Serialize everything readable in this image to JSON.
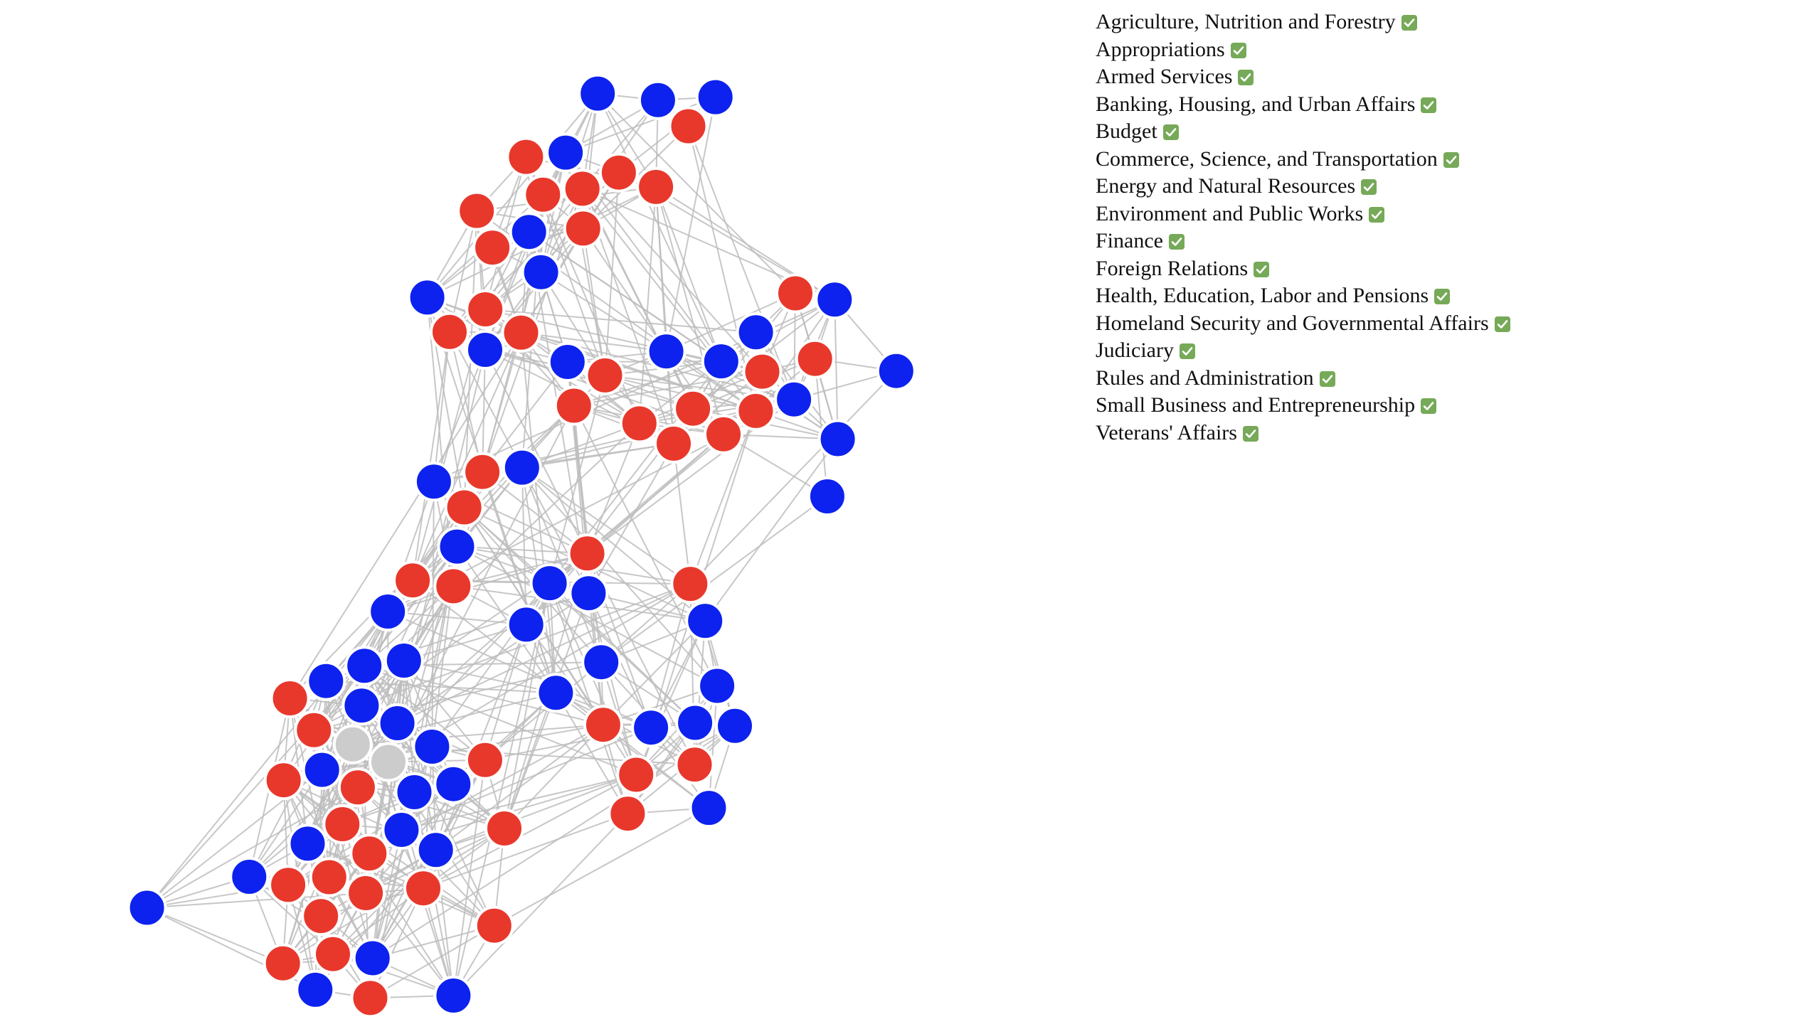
{
  "legend": {
    "check_icon": "checkbox-checked-icon",
    "check_color": "#76a958",
    "committees": [
      {
        "label": "Agriculture, Nutrition and Forestry",
        "checked": true
      },
      {
        "label": "Appropriations",
        "checked": true
      },
      {
        "label": "Armed Services",
        "checked": true
      },
      {
        "label": "Banking, Housing, and Urban Affairs",
        "checked": true
      },
      {
        "label": "Budget",
        "checked": true
      },
      {
        "label": "Commerce, Science, and Transportation",
        "checked": true
      },
      {
        "label": "Energy and Natural Resources",
        "checked": true
      },
      {
        "label": "Environment and Public Works",
        "checked": true
      },
      {
        "label": "Finance",
        "checked": true
      },
      {
        "label": "Foreign Relations",
        "checked": true
      },
      {
        "label": "Health, Education, Labor and Pensions",
        "checked": true
      },
      {
        "label": "Homeland Security and Governmental Affairs",
        "checked": true
      },
      {
        "label": "Judiciary",
        "checked": true
      },
      {
        "label": "Rules and Administration",
        "checked": true
      },
      {
        "label": "Small Business and Entrepreneurship",
        "checked": true
      },
      {
        "label": "Veterans' Affairs",
        "checked": true
      }
    ]
  },
  "graph": {
    "node_count": 100,
    "colors": {
      "republican": "#e8382c",
      "democrat": "#0d22ee",
      "independent": "#cccccc",
      "edge": "#bdbdbd",
      "node_stroke": "#ffffff"
    },
    "party_order": [
      "democrat",
      "democrat",
      "democrat",
      "republican",
      "republican",
      "republican",
      "republican",
      "republican"
    ]
  }
}
